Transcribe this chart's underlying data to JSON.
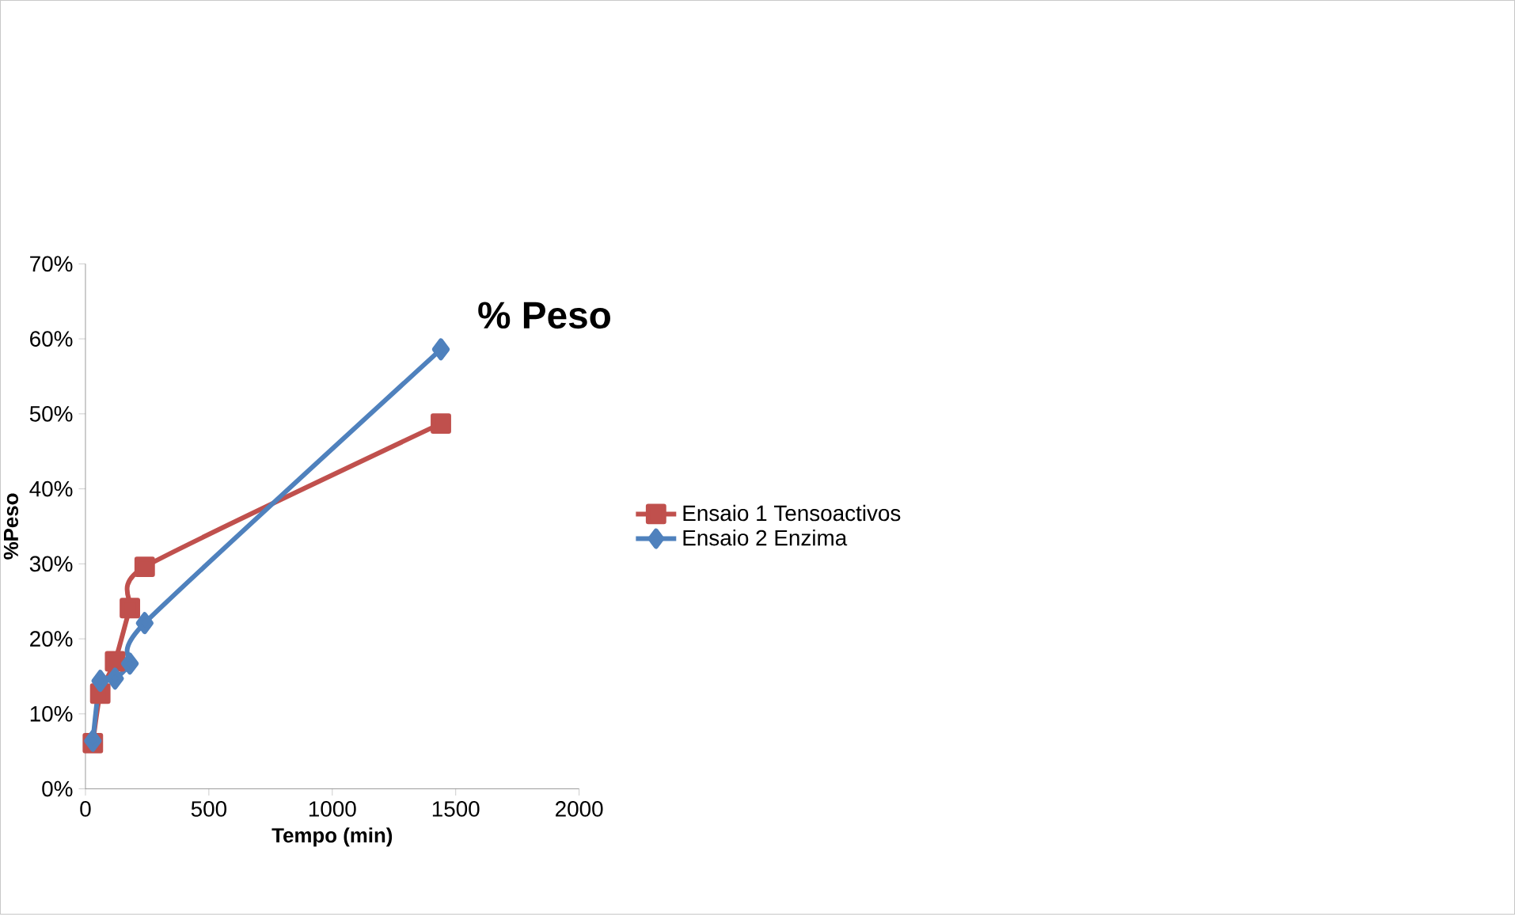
{
  "chart_data": {
    "type": "line",
    "title": "% Peso",
    "xlabel": "Tempo (min)",
    "ylabel": "%Peso",
    "xlim": [
      0,
      2000
    ],
    "xticks": [
      0,
      500,
      1000,
      1500,
      2000
    ],
    "ylim": [
      0,
      70
    ],
    "yticks": [
      {
        "value": 0,
        "label": "0%"
      },
      {
        "value": 10,
        "label": "10%"
      },
      {
        "value": 20,
        "label": "20%"
      },
      {
        "value": 30,
        "label": "30%"
      },
      {
        "value": 40,
        "label": "40%"
      },
      {
        "value": 50,
        "label": "50%"
      },
      {
        "value": 60,
        "label": "60%"
      },
      {
        "value": 70,
        "label": "70%"
      }
    ],
    "grid": false,
    "legend": "right",
    "line_style": "solid",
    "series": [
      {
        "name": "Ensaio 1 Tensoactivos",
        "color": "#c0504d",
        "marker": "square",
        "x": [
          30,
          60,
          120,
          180,
          240,
          1440
        ],
        "values": [
          6.1,
          12.7,
          17.0,
          24.1,
          29.6,
          48.7
        ]
      },
      {
        "name": "Ensaio 2 Enzima",
        "color": "#4f81bd",
        "marker": "diamond",
        "x": [
          30,
          60,
          120,
          180,
          240,
          1440
        ],
        "values": [
          6.4,
          14.4,
          14.7,
          16.7,
          22.1,
          58.6
        ]
      }
    ]
  }
}
